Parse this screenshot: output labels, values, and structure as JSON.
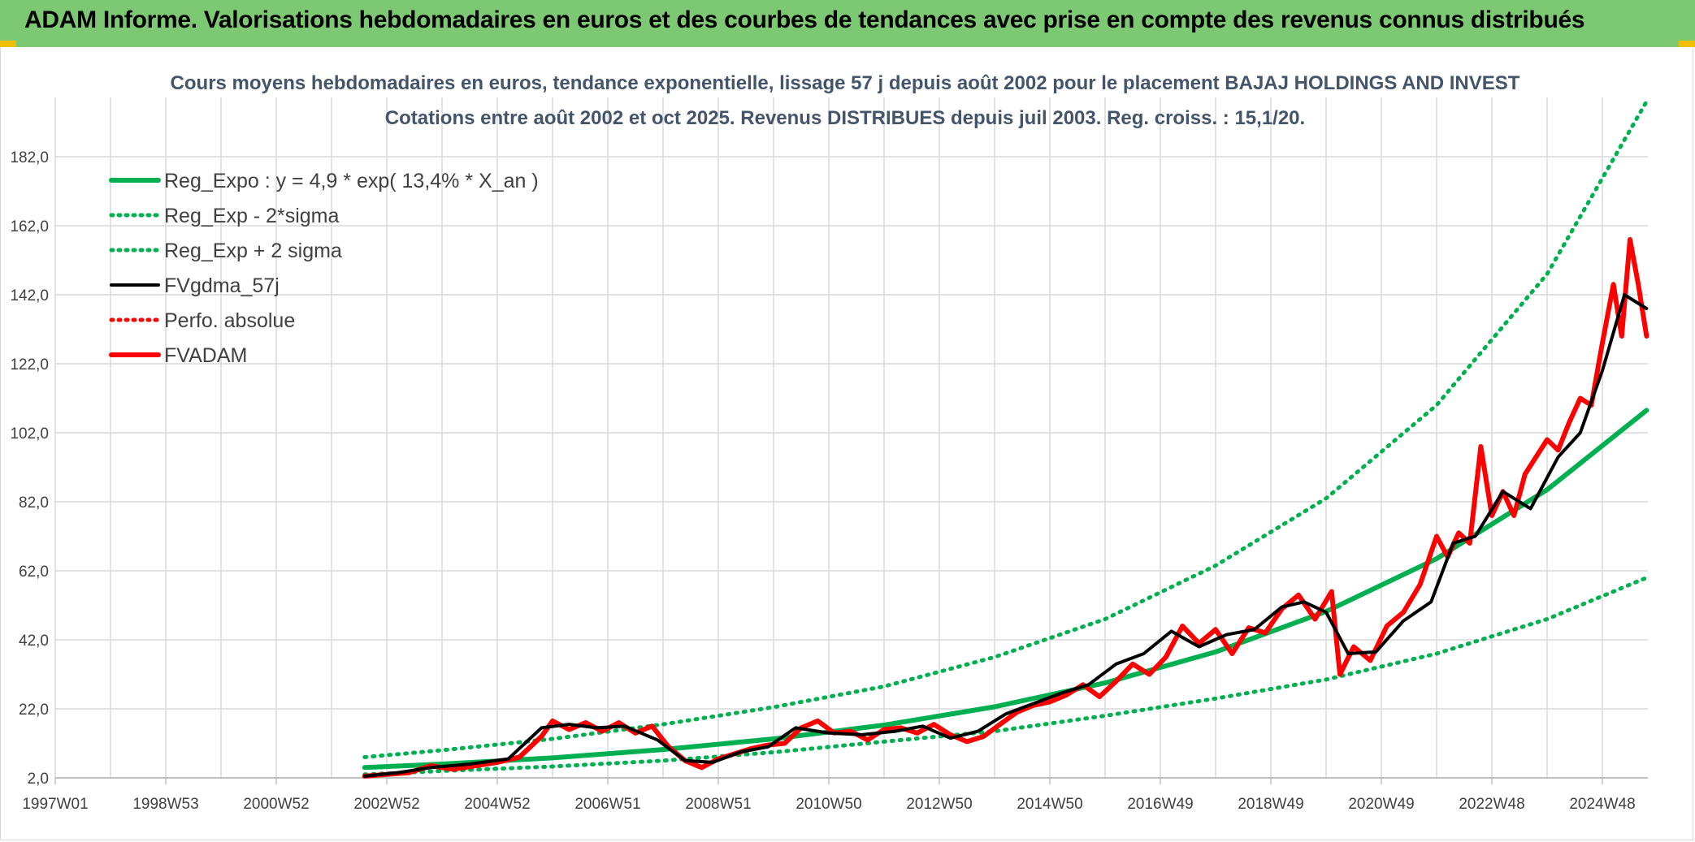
{
  "header": {
    "title": "ADAM Informe. Valorisations hebdomadaires en euros et des courbes de tendances avec prise en compte des revenus connus distribués"
  },
  "chart_data": {
    "type": "line",
    "title": "Cours moyens hebdomadaires en euros, tendance exponentielle, lissage 57 j depuis août 2002 pour le placement BAJAJ HOLDINGS AND INVEST",
    "subtitle": "Cotations entre août 2002 et oct 2025. Revenus DISTRIBUES depuis juil 2003. Reg. croiss. : 15,1/20.",
    "xlabel": "",
    "ylabel": "",
    "x_tick_labels": [
      "1997W01",
      "1998W53",
      "2000W52",
      "2002W52",
      "2004W52",
      "2006W51",
      "2008W51",
      "2010W50",
      "2012W50",
      "2014W50",
      "2016W49",
      "2018W49",
      "2020W49",
      "2022W48",
      "2024W48"
    ],
    "y_tick_labels": [
      "2,0",
      "22,0",
      "42,0",
      "62,0",
      "82,0",
      "102,0",
      "122,0",
      "142,0",
      "162,0",
      "182,0"
    ],
    "xlim": [
      1997.0,
      2025.85
    ],
    "ylim": [
      2,
      200
    ],
    "grid": true,
    "legend_position": "top-left",
    "colors": {
      "green": "#00b050",
      "black": "#000000",
      "red": "#ff0000"
    },
    "series": [
      {
        "name": "Reg_Expo : y = 4,9 * exp( 13,4% *  X_an )",
        "style": "solid-thick",
        "color": "#00b050",
        "x": [
          2002.6,
          2004.0,
          2006.0,
          2008.0,
          2010.0,
          2012.0,
          2014.0,
          2016.0,
          2018.0,
          2020.0,
          2022.0,
          2024.0,
          2025.8
        ],
        "values": [
          5.0,
          6.0,
          7.8,
          10.2,
          13.3,
          17.3,
          22.6,
          29.5,
          38.5,
          50.2,
          65.5,
          85.5,
          108.5
        ]
      },
      {
        "name": "Reg_Exp - 2*sigma",
        "style": "dotted",
        "color": "#00b050",
        "x": [
          2002.6,
          2004.0,
          2006.0,
          2008.0,
          2010.0,
          2012.0,
          2014.0,
          2016.0,
          2018.0,
          2020.0,
          2022.0,
          2024.0,
          2025.8
        ],
        "values": [
          3.0,
          4.0,
          5.3,
          7.0,
          9.4,
          12.5,
          15.5,
          20.0,
          25.0,
          30.5,
          38.0,
          48.0,
          60.0
        ]
      },
      {
        "name": "Reg_Exp + 2 sigma",
        "style": "dotted",
        "color": "#00b050",
        "x": [
          2002.6,
          2004.0,
          2006.0,
          2008.0,
          2010.0,
          2012.0,
          2014.0,
          2016.0,
          2018.0,
          2020.0,
          2022.0,
          2024.0,
          2025.8
        ],
        "values": [
          8.0,
          10.0,
          13.3,
          17.5,
          22.5,
          28.5,
          37.0,
          48.0,
          63.5,
          83.0,
          110.0,
          148.0,
          198.0
        ]
      },
      {
        "name": "FVgdma_57j",
        "style": "solid",
        "color": "#000000",
        "x": [
          2002.6,
          2003.2,
          2003.8,
          2004.5,
          2005.2,
          2005.8,
          2006.3,
          2006.8,
          2007.3,
          2007.9,
          2008.4,
          2008.9,
          2009.4,
          2009.9,
          2010.4,
          2011.0,
          2011.6,
          2012.2,
          2012.7,
          2013.2,
          2013.7,
          2014.2,
          2014.7,
          2015.2,
          2015.7,
          2016.2,
          2016.7,
          2017.2,
          2017.7,
          2018.2,
          2018.7,
          2019.2,
          2019.6,
          2020.0,
          2020.4,
          2020.9,
          2021.4,
          2021.9,
          2022.3,
          2022.7,
          2023.2,
          2023.7,
          2024.2,
          2024.6,
          2025.0,
          2025.4,
          2025.8
        ],
        "values": [
          2.5,
          3.5,
          5.0,
          6.0,
          7.5,
          16.5,
          17.5,
          16.5,
          17.0,
          13.0,
          7.0,
          6.5,
          9.5,
          11.0,
          16.5,
          15.0,
          14.5,
          15.5,
          17.0,
          13.5,
          15.5,
          20.5,
          23.5,
          26.5,
          29.0,
          35.0,
          38.0,
          44.5,
          40.0,
          43.5,
          45.0,
          51.5,
          53.0,
          50.0,
          38.0,
          38.5,
          47.5,
          53.0,
          70.0,
          72.0,
          85.0,
          80.0,
          95.0,
          102.0,
          120.0,
          142.0,
          138.0
        ]
      },
      {
        "name": "Perfo. absolue",
        "style": "dotted",
        "color": "#ff0000",
        "x": [],
        "values": []
      },
      {
        "name": "FVADAM",
        "style": "solid-thick",
        "color": "#ff0000",
        "x": [
          2002.6,
          2003.0,
          2003.4,
          2003.8,
          2004.2,
          2004.6,
          2005.0,
          2005.4,
          2005.8,
          2006.0,
          2006.3,
          2006.6,
          2006.9,
          2007.2,
          2007.5,
          2007.8,
          2008.1,
          2008.4,
          2008.7,
          2009.0,
          2009.3,
          2009.6,
          2009.9,
          2010.2,
          2010.5,
          2010.8,
          2011.1,
          2011.4,
          2011.7,
          2012.0,
          2012.3,
          2012.6,
          2012.9,
          2013.2,
          2013.5,
          2013.8,
          2014.1,
          2014.4,
          2014.7,
          2015.0,
          2015.3,
          2015.6,
          2015.9,
          2016.2,
          2016.5,
          2016.8,
          2017.1,
          2017.4,
          2017.7,
          2018.0,
          2018.3,
          2018.6,
          2018.9,
          2019.2,
          2019.5,
          2019.8,
          2020.1,
          2020.25,
          2020.5,
          2020.8,
          2021.1,
          2021.4,
          2021.7,
          2022.0,
          2022.2,
          2022.4,
          2022.6,
          2022.8,
          2023.0,
          2023.2,
          2023.4,
          2023.6,
          2023.8,
          2024.0,
          2024.2,
          2024.4,
          2024.6,
          2024.8,
          2025.0,
          2025.2,
          2025.35,
          2025.5,
          2025.65,
          2025.8
        ],
        "values": [
          2.5,
          3.0,
          3.5,
          5.5,
          4.5,
          5.5,
          6.5,
          8.0,
          14.0,
          18.5,
          16.0,
          18.0,
          15.5,
          18.0,
          15.0,
          17.0,
          11.0,
          7.0,
          5.0,
          7.5,
          9.0,
          10.5,
          11.5,
          12.0,
          16.5,
          18.5,
          15.0,
          15.5,
          13.0,
          16.0,
          16.5,
          15.0,
          17.5,
          14.5,
          12.5,
          14.0,
          17.5,
          21.0,
          23.0,
          24.0,
          26.0,
          29.0,
          25.5,
          30.0,
          35.0,
          32.0,
          37.0,
          46.0,
          41.0,
          45.0,
          38.0,
          45.5,
          44.0,
          51.0,
          55.0,
          48.0,
          56.0,
          32.0,
          40.0,
          36.0,
          46.0,
          50.0,
          58.0,
          72.0,
          66.0,
          73.0,
          70.0,
          98.0,
          78.0,
          85.0,
          78.0,
          90.0,
          95.0,
          100.0,
          97.0,
          105.0,
          112.0,
          110.0,
          128.0,
          145.0,
          130.0,
          158.0,
          145.0,
          130.0
        ]
      }
    ]
  }
}
